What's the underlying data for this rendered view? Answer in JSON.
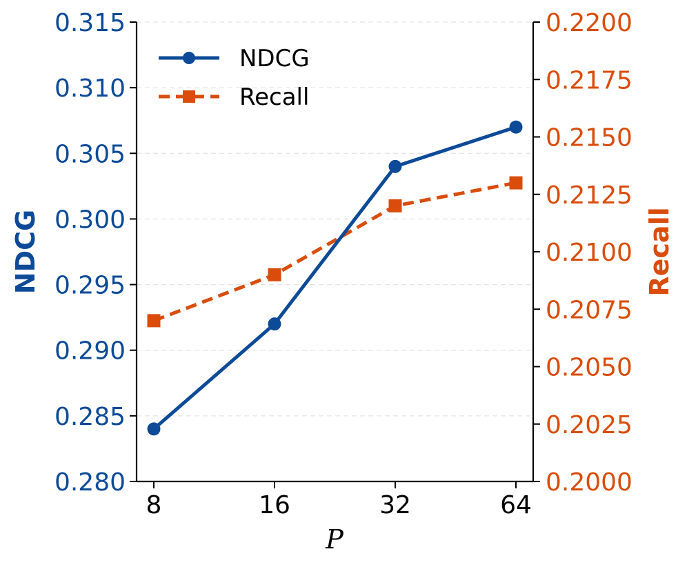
{
  "chart_data": {
    "type": "line",
    "x_categories": [
      "8",
      "16",
      "32",
      "64"
    ],
    "xlabel": "P",
    "ylabel_left": "NDCG",
    "ylabel_right": "Recall",
    "ylim_left": [
      0.28,
      0.315
    ],
    "ylim_right": [
      0.2,
      0.22
    ],
    "yticks_left": [
      "0.280",
      "0.285",
      "0.290",
      "0.295",
      "0.300",
      "0.305",
      "0.310",
      "0.315"
    ],
    "yticks_right": [
      "0.2000",
      "0.2025",
      "0.2050",
      "0.2075",
      "0.2100",
      "0.2125",
      "0.2150",
      "0.2175",
      "0.2200"
    ],
    "grid": "horizontal dashed",
    "legend_position": "top-left",
    "series": [
      {
        "name": "NDCG",
        "axis": "left",
        "marker": "circle",
        "style": "solid",
        "color": "#0d4a97",
        "values": [
          0.284,
          0.292,
          0.304,
          0.307
        ]
      },
      {
        "name": "Recall",
        "axis": "right",
        "marker": "square",
        "style": "dashed",
        "color": "#d94c0b",
        "values": [
          0.207,
          0.209,
          0.212,
          0.213
        ]
      }
    ]
  }
}
